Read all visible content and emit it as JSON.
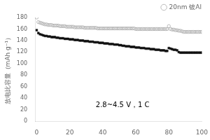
{
  "chart_data": {
    "type": "scatter",
    "ylabel": "放电比容量（mAh g⁻¹）",
    "x": [
      0,
      1,
      2,
      3,
      4,
      5,
      6,
      7,
      8,
      9,
      10,
      11,
      12,
      13,
      14,
      15,
      16,
      17,
      18,
      19,
      20,
      21,
      22,
      23,
      24,
      25,
      26,
      27,
      28,
      29,
      30,
      31,
      32,
      33,
      34,
      35,
      36,
      37,
      38,
      39,
      40,
      41,
      42,
      43,
      44,
      45,
      46,
      47,
      48,
      49,
      50,
      51,
      52,
      53,
      54,
      55,
      56,
      57,
      58,
      59,
      60,
      61,
      62,
      63,
      64,
      65,
      66,
      67,
      68,
      69,
      70,
      71,
      72,
      73,
      74,
      75,
      76,
      77,
      78,
      79,
      80,
      81,
      82,
      83,
      84,
      85,
      86,
      87,
      88,
      89,
      90,
      91,
      92,
      93,
      94,
      95,
      96,
      97,
      98,
      99,
      100
    ],
    "series": [
      {
        "name": "20nm 镀Al",
        "color": "#aaaaaa",
        "marker": "circle",
        "values": [
          180,
          172,
          171,
          170,
          169,
          168,
          168,
          167,
          167,
          167,
          166,
          166,
          166,
          166,
          165,
          165,
          165,
          165,
          164,
          164,
          164,
          164,
          164,
          163,
          163,
          163,
          163,
          163,
          163,
          162,
          162,
          162,
          162,
          162,
          162,
          162,
          162,
          161,
          161,
          161,
          161,
          161,
          161,
          161,
          161,
          161,
          161,
          161,
          161,
          161,
          161,
          161,
          161,
          161,
          161,
          161,
          161,
          161,
          161,
          161,
          160,
          160,
          160,
          160,
          160,
          160,
          160,
          160,
          160,
          160,
          160,
          160,
          160,
          160,
          160,
          160,
          160,
          160,
          160,
          160,
          165,
          160,
          159,
          159,
          158,
          158,
          157,
          157,
          156,
          155,
          155,
          155,
          155,
          155,
          155,
          155,
          155,
          155,
          155,
          155,
          155
        ]
      },
      {
        "color": "#111111",
        "marker": "square",
        "values": [
          158,
          153,
          151,
          150,
          149,
          148,
          148,
          147,
          147,
          146,
          146,
          146,
          145,
          145,
          144,
          144,
          144,
          143,
          143,
          143,
          142,
          142,
          142,
          141,
          141,
          141,
          140,
          140,
          140,
          139,
          139,
          139,
          138,
          138,
          138,
          137,
          137,
          137,
          136,
          136,
          136,
          135,
          135,
          135,
          134,
          134,
          134,
          133,
          133,
          133,
          132,
          132,
          131,
          131,
          130,
          130,
          130,
          129,
          129,
          129,
          128,
          128,
          128,
          127,
          127,
          127,
          126,
          126,
          126,
          125,
          125,
          125,
          124,
          124,
          124,
          123,
          123,
          123,
          122,
          122,
          127,
          126,
          125,
          124,
          124,
          123,
          120,
          119,
          119,
          119,
          119,
          119,
          119,
          119,
          119,
          119,
          119,
          119,
          119,
          119,
          119
        ]
      }
    ],
    "xlim": [
      -1,
      100
    ],
    "ylim": [
      0,
      180
    ],
    "xticks": [
      0,
      20,
      40,
      60,
      80,
      100
    ],
    "yticks": [
      0,
      20,
      40,
      60,
      80,
      100,
      120,
      140,
      160,
      180
    ],
    "annotations": [
      {
        "text": "2.8~4.5 V，1 C",
        "x": 52,
        "y": 28
      }
    ],
    "legend": "upper right",
    "grid": false
  }
}
